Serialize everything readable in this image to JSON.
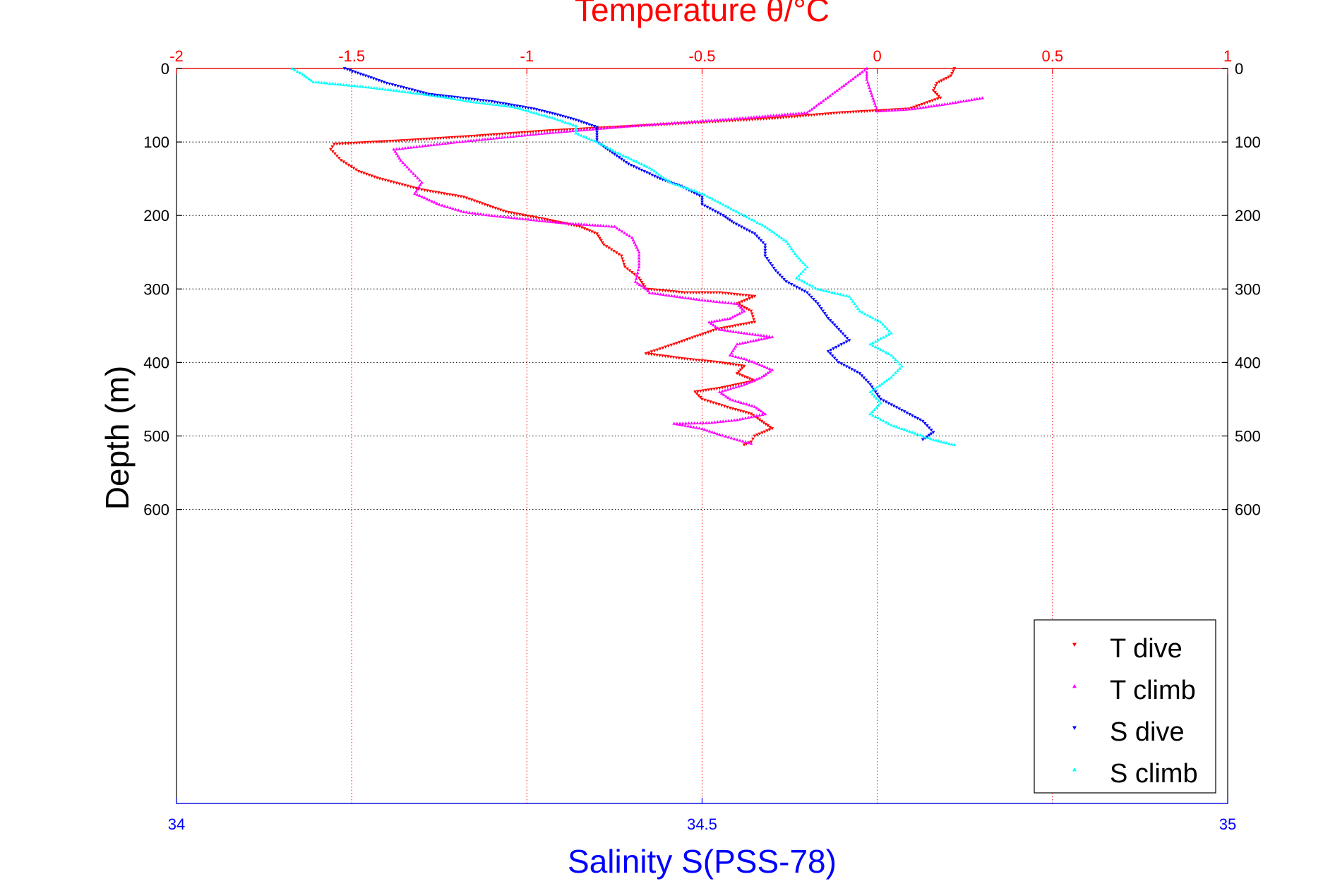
{
  "chart_data": {
    "type": "scatter",
    "title": "Temperature θ/°C",
    "xlabel_bottom": "Salinity S(PSS-78)",
    "ylabel": "Depth (m)",
    "axes": {
      "temperature_top": {
        "range": [
          -2,
          1
        ],
        "ticks": [
          -2,
          -1.5,
          -1,
          -0.5,
          0,
          0.5,
          1
        ],
        "tick_labels": [
          "-2",
          "-1.5",
          "-1",
          "-0.5",
          "0",
          "0.5",
          "1"
        ]
      },
      "salinity_bottom": {
        "range": [
          34,
          35
        ],
        "ticks": [
          34,
          34.5,
          35
        ],
        "tick_labels": [
          "34",
          "34.5",
          "35"
        ]
      },
      "depth_left": {
        "range": [
          0,
          1000
        ],
        "reversed": true,
        "ticks": [
          0,
          100,
          200,
          300,
          400,
          500,
          600
        ],
        "tick_labels": [
          "0",
          "100",
          "200",
          "300",
          "400",
          "500",
          "600"
        ]
      },
      "depth_right": {
        "ticks": [
          0,
          100,
          200,
          300,
          400,
          500,
          600
        ],
        "tick_labels": [
          "0",
          "100",
          "200",
          "300",
          "400",
          "500",
          "600"
        ]
      }
    },
    "grid": true,
    "legend": {
      "placement": "bottom-right"
    },
    "series": [
      {
        "name": "T dive",
        "axis": "temperature",
        "color": "#ff0000",
        "marker": "triangle-down",
        "points": [
          [
            0.22,
            0
          ],
          [
            0.21,
            10
          ],
          [
            0.17,
            20
          ],
          [
            0.16,
            30
          ],
          [
            0.18,
            40
          ],
          [
            0.09,
            55
          ],
          [
            -0.1,
            60
          ],
          [
            -0.3,
            68
          ],
          [
            -0.6,
            76
          ],
          [
            -0.95,
            85
          ],
          [
            -1.15,
            92
          ],
          [
            -1.35,
            98
          ],
          [
            -1.55,
            103
          ],
          [
            -1.56,
            110
          ],
          [
            -1.53,
            125
          ],
          [
            -1.48,
            140
          ],
          [
            -1.42,
            150
          ],
          [
            -1.3,
            165
          ],
          [
            -1.18,
            175
          ],
          [
            -1.12,
            185
          ],
          [
            -1.06,
            195
          ],
          [
            -0.95,
            205
          ],
          [
            -0.85,
            215
          ],
          [
            -0.8,
            225
          ],
          [
            -0.78,
            240
          ],
          [
            -0.73,
            255
          ],
          [
            -0.72,
            270
          ],
          [
            -0.68,
            285
          ],
          [
            -0.66,
            300
          ],
          [
            -0.55,
            305
          ],
          [
            -0.45,
            305
          ],
          [
            -0.35,
            310
          ],
          [
            -0.4,
            320
          ],
          [
            -0.36,
            330
          ],
          [
            -0.35,
            345
          ],
          [
            -0.46,
            355
          ],
          [
            -0.52,
            365
          ],
          [
            -0.58,
            375
          ],
          [
            -0.66,
            388
          ],
          [
            -0.55,
            395
          ],
          [
            -0.45,
            400
          ],
          [
            -0.38,
            405
          ],
          [
            -0.4,
            415
          ],
          [
            -0.35,
            425
          ],
          [
            -0.45,
            435
          ],
          [
            -0.52,
            440
          ],
          [
            -0.5,
            450
          ],
          [
            -0.42,
            462
          ],
          [
            -0.36,
            470
          ],
          [
            -0.33,
            480
          ],
          [
            -0.3,
            490
          ],
          [
            -0.35,
            500
          ],
          [
            -0.36,
            508
          ],
          [
            -0.38,
            512
          ]
        ]
      },
      {
        "name": "T climb",
        "axis": "temperature",
        "color": "#ff00ff",
        "marker": "triangle-up",
        "points": [
          [
            0.3,
            40
          ],
          [
            0.2,
            48
          ],
          [
            0.1,
            55
          ],
          [
            0.0,
            58
          ],
          [
            -0.02,
            30
          ],
          [
            -0.03,
            15
          ],
          [
            -0.03,
            5
          ],
          [
            -0.03,
            0
          ],
          [
            -0.2,
            60
          ],
          [
            -0.4,
            68
          ],
          [
            -0.7,
            78
          ],
          [
            -0.95,
            88
          ],
          [
            -1.2,
            100
          ],
          [
            -1.38,
            110
          ],
          [
            -1.36,
            125
          ],
          [
            -1.33,
            140
          ],
          [
            -1.3,
            155
          ],
          [
            -1.32,
            170
          ],
          [
            -1.25,
            185
          ],
          [
            -1.18,
            195
          ],
          [
            -1.1,
            200
          ],
          [
            -0.9,
            210
          ],
          [
            -0.75,
            215
          ],
          [
            -0.7,
            230
          ],
          [
            -0.68,
            250
          ],
          [
            -0.68,
            270
          ],
          [
            -0.69,
            290
          ],
          [
            -0.66,
            300
          ],
          [
            -0.65,
            305
          ],
          [
            -0.5,
            315
          ],
          [
            -0.4,
            320
          ],
          [
            -0.38,
            330
          ],
          [
            -0.42,
            340
          ],
          [
            -0.48,
            345
          ],
          [
            -0.45,
            355
          ],
          [
            -0.38,
            360
          ],
          [
            -0.3,
            365
          ],
          [
            -0.4,
            375
          ],
          [
            -0.42,
            390
          ],
          [
            -0.38,
            395
          ],
          [
            -0.35,
            400
          ],
          [
            -0.3,
            410
          ],
          [
            -0.33,
            420
          ],
          [
            -0.38,
            430
          ],
          [
            -0.45,
            440
          ],
          [
            -0.42,
            450
          ],
          [
            -0.35,
            460
          ],
          [
            -0.32,
            470
          ],
          [
            -0.4,
            478
          ],
          [
            -0.48,
            482
          ],
          [
            -0.58,
            483
          ],
          [
            -0.5,
            490
          ],
          [
            -0.45,
            498
          ],
          [
            -0.4,
            505
          ],
          [
            -0.36,
            510
          ]
        ]
      },
      {
        "name": "S dive",
        "axis": "salinity",
        "color": "#0000ff",
        "marker": "triangle-down",
        "points": [
          [
            34.16,
            0
          ],
          [
            34.18,
            10
          ],
          [
            34.2,
            20
          ],
          [
            34.24,
            35
          ],
          [
            34.3,
            45
          ],
          [
            34.34,
            55
          ],
          [
            34.36,
            62
          ],
          [
            34.38,
            70
          ],
          [
            34.4,
            80
          ],
          [
            34.4,
            90
          ],
          [
            34.4,
            100
          ],
          [
            34.41,
            110
          ],
          [
            34.43,
            130
          ],
          [
            34.46,
            150
          ],
          [
            34.48,
            160
          ],
          [
            34.5,
            175
          ],
          [
            34.5,
            185
          ],
          [
            34.52,
            200
          ],
          [
            34.53,
            210
          ],
          [
            34.55,
            225
          ],
          [
            34.56,
            240
          ],
          [
            34.56,
            255
          ],
          [
            34.57,
            275
          ],
          [
            34.58,
            290
          ],
          [
            34.6,
            305
          ],
          [
            34.61,
            320
          ],
          [
            34.62,
            340
          ],
          [
            34.63,
            355
          ],
          [
            34.64,
            370
          ],
          [
            34.62,
            385
          ],
          [
            34.63,
            400
          ],
          [
            34.65,
            415
          ],
          [
            34.66,
            430
          ],
          [
            34.67,
            450
          ],
          [
            34.69,
            465
          ],
          [
            34.71,
            480
          ],
          [
            34.72,
            495
          ],
          [
            34.71,
            505
          ]
        ]
      },
      {
        "name": "S climb",
        "axis": "salinity",
        "color": "#00ffff",
        "marker": "triangle-up",
        "points": [
          [
            34.11,
            0
          ],
          [
            34.12,
            8
          ],
          [
            34.13,
            18
          ],
          [
            34.18,
            25
          ],
          [
            34.22,
            32
          ],
          [
            34.26,
            40
          ],
          [
            34.28,
            45
          ],
          [
            34.32,
            52
          ],
          [
            34.34,
            60
          ],
          [
            34.36,
            68
          ],
          [
            34.38,
            78
          ],
          [
            34.38,
            88
          ],
          [
            34.4,
            100
          ],
          [
            34.42,
            115
          ],
          [
            34.45,
            135
          ],
          [
            34.47,
            155
          ],
          [
            34.5,
            170
          ],
          [
            34.52,
            185
          ],
          [
            34.54,
            200
          ],
          [
            34.56,
            215
          ],
          [
            34.58,
            235
          ],
          [
            34.59,
            255
          ],
          [
            34.6,
            270
          ],
          [
            34.59,
            285
          ],
          [
            34.61,
            300
          ],
          [
            34.64,
            310
          ],
          [
            34.65,
            330
          ],
          [
            34.67,
            345
          ],
          [
            34.68,
            360
          ],
          [
            34.66,
            375
          ],
          [
            34.68,
            390
          ],
          [
            34.69,
            405
          ],
          [
            34.68,
            420
          ],
          [
            34.66,
            440
          ],
          [
            34.67,
            455
          ],
          [
            34.66,
            470
          ],
          [
            34.68,
            485
          ],
          [
            34.7,
            495
          ],
          [
            34.72,
            505
          ],
          [
            34.74,
            512
          ]
        ]
      }
    ]
  }
}
